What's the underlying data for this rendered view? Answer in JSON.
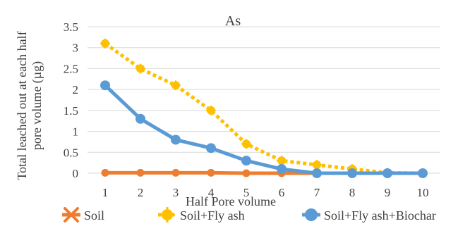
{
  "chart_data": {
    "type": "line",
    "title": "As",
    "xlabel": "Half Pore volume",
    "ylabel": "Total leached out at each half pore volume  (µg)",
    "ylabel_lines": [
      "Total leached out at each half",
      "pore volume  (µg)"
    ],
    "x": [
      1,
      2,
      3,
      4,
      5,
      6,
      7,
      8,
      9,
      10
    ],
    "x_tick_labels": [
      "1",
      "2",
      "3",
      "4",
      "5",
      "6",
      "7",
      "8",
      "9",
      "10"
    ],
    "y_tick_labels": [
      "0",
      "0.5",
      "1",
      "1.5",
      "2",
      "2.5",
      "3",
      "3.5"
    ],
    "ylim": [
      0,
      3.5
    ],
    "y_ticks": [
      0,
      0.5,
      1,
      1.5,
      2,
      2.5,
      3,
      3.5
    ],
    "grid": true,
    "legend_position": "bottom",
    "series": [
      {
        "name": "Soil",
        "values": [
          0.01,
          0.01,
          0.01,
          0.01,
          0.0,
          0.0,
          0.0,
          0.0,
          0.0,
          0.0
        ],
        "color": "#ED7D31",
        "style": "solid"
      },
      {
        "name": "Soil+Fly ash",
        "values": [
          3.1,
          2.5,
          2.1,
          1.5,
          0.7,
          0.3,
          0.2,
          0.1,
          0.01,
          0.0
        ],
        "color": "#FFC000",
        "style": "dotted"
      },
      {
        "name": "Soil+Fly ash+Biochar",
        "values": [
          2.1,
          1.3,
          0.8,
          0.6,
          0.3,
          0.1,
          0.0,
          0.0,
          0.0,
          0.0
        ],
        "color": "#5B9BD5",
        "style": "solid"
      }
    ]
  }
}
